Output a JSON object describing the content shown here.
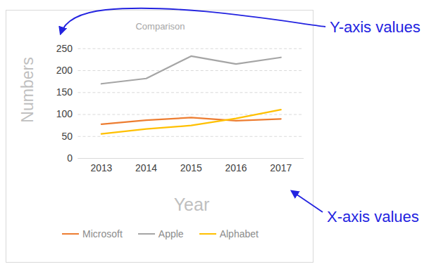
{
  "chart_data": {
    "type": "line",
    "title": "Comparison",
    "x_label": "Year",
    "y_label": "Numbers",
    "categories": [
      "2013",
      "2014",
      "2015",
      "2016",
      "2017"
    ],
    "series": [
      {
        "name": "Microsoft",
        "color": "#ED7D31",
        "values": [
          78,
          87,
          93,
          86,
          90
        ]
      },
      {
        "name": "Apple",
        "color": "#A5A5A5",
        "values": [
          170,
          182,
          233,
          215,
          230
        ]
      },
      {
        "name": "Alphabet",
        "color": "#FFC000",
        "values": [
          56,
          67,
          75,
          91,
          111
        ]
      }
    ],
    "ylim": [
      0,
      250
    ],
    "yticks": [
      0,
      50,
      100,
      150,
      200,
      250
    ],
    "grid": true,
    "legend": "bottom",
    "annotations": [
      "Y-axis values",
      "X-axis values"
    ]
  }
}
